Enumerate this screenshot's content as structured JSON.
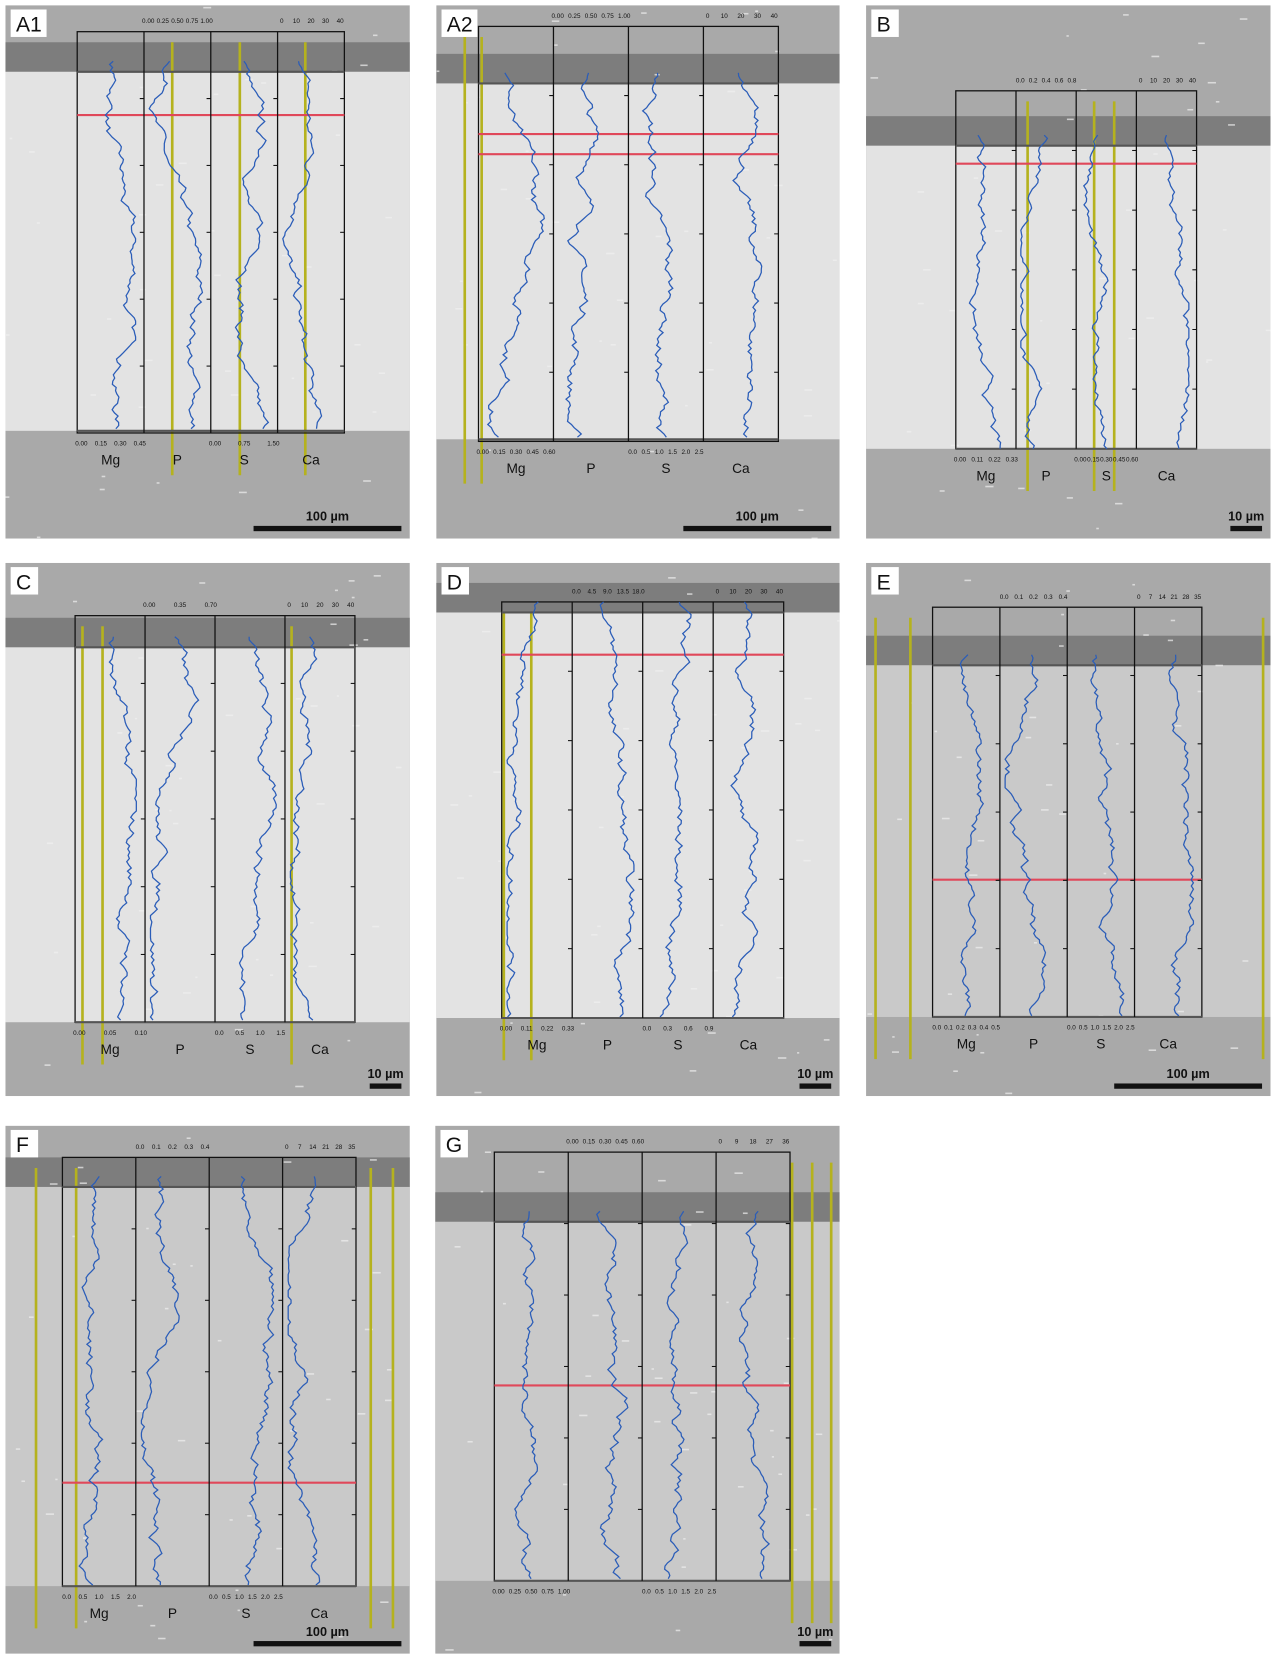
{
  "panels": [
    {
      "label": "A1",
      "scale_bar": "100 µm",
      "tracks": [
        {
          "element": "Mg",
          "ticks": [
            "0.00",
            "0.15",
            "0.30",
            "0.45"
          ]
        },
        {
          "element": "P",
          "ticks": [
            "0.00",
            "0.25",
            "0.50",
            "0.75",
            "1.00"
          ]
        },
        {
          "element": "S",
          "ticks": [
            "0.00",
            "0.75",
            "1.50"
          ]
        },
        {
          "element": "Ca",
          "ticks": [
            "0",
            "10",
            "20",
            "30",
            "40"
          ]
        }
      ]
    },
    {
      "label": "A2",
      "scale_bar": "100 µm",
      "tracks": [
        {
          "element": "Mg",
          "ticks": [
            "0.00",
            "0.15",
            "0.30",
            "0.45",
            "0.60"
          ]
        },
        {
          "element": "P",
          "ticks": [
            "0.00",
            "0.25",
            "0.50",
            "0.75",
            "1.00"
          ]
        },
        {
          "element": "S",
          "ticks": [
            "0.0",
            "0.5",
            "1.0",
            "1.5",
            "2.0",
            "2.5"
          ]
        },
        {
          "element": "Ca",
          "ticks": [
            "0",
            "10",
            "20",
            "30",
            "40"
          ]
        }
      ]
    },
    {
      "label": "B",
      "scale_bar": "10 µm",
      "tracks": [
        {
          "element": "Mg",
          "ticks": [
            "0.00",
            "0.11",
            "0.22",
            "0.33"
          ]
        },
        {
          "element": "P",
          "ticks": [
            "0.0",
            "0.2",
            "0.4",
            "0.6",
            "0.8"
          ]
        },
        {
          "element": "S",
          "ticks": [
            "0.00",
            "0.15",
            "0.30",
            "0.45",
            "0.60"
          ]
        },
        {
          "element": "Ca",
          "ticks": [
            "0",
            "10",
            "20",
            "30",
            "40"
          ]
        }
      ]
    },
    {
      "label": "C",
      "scale_bar": "10 µm",
      "tracks": [
        {
          "element": "Mg",
          "ticks": [
            "0.00",
            "0.05",
            "0.10"
          ]
        },
        {
          "element": "P",
          "ticks": [
            "0.00",
            "0.35",
            "0.70"
          ]
        },
        {
          "element": "S",
          "ticks": [
            "0.0",
            "0.5",
            "1.0",
            "1.5"
          ]
        },
        {
          "element": "Ca",
          "ticks": [
            "0",
            "10",
            "20",
            "30",
            "40"
          ]
        }
      ]
    },
    {
      "label": "D",
      "scale_bar": "10 µm",
      "tracks": [
        {
          "element": "Mg",
          "ticks": [
            "0.00",
            "0.11",
            "0.22",
            "0.33"
          ]
        },
        {
          "element": "P",
          "ticks": [
            "0.0",
            "4.5",
            "9.0",
            "13.5",
            "18.0"
          ]
        },
        {
          "element": "S",
          "ticks": [
            "0.0",
            "0.3",
            "0.6",
            "0.9"
          ]
        },
        {
          "element": "Ca",
          "ticks": [
            "0",
            "10",
            "20",
            "30",
            "40"
          ]
        }
      ]
    },
    {
      "label": "E",
      "scale_bar": "100 µm",
      "tracks": [
        {
          "element": "Mg",
          "ticks": [
            "0.0",
            "0.1",
            "0.2",
            "0.3",
            "0.4",
            "0.5"
          ]
        },
        {
          "element": "P",
          "ticks": [
            "0.0",
            "0.1",
            "0.2",
            "0.3",
            "0.4"
          ]
        },
        {
          "element": "S",
          "ticks": [
            "0.0",
            "0.5",
            "1.0",
            "1.5",
            "2.0",
            "2.5"
          ]
        },
        {
          "element": "Ca",
          "ticks": [
            "0",
            "7",
            "14",
            "21",
            "28",
            "35"
          ]
        }
      ]
    },
    {
      "label": "F",
      "scale_bar": "100 µm",
      "tracks": [
        {
          "element": "Mg",
          "ticks": [
            "0.0",
            "0.5",
            "1.0",
            "1.5",
            "2.0"
          ]
        },
        {
          "element": "P",
          "ticks": [
            "0.0",
            "0.1",
            "0.2",
            "0.3",
            "0.4"
          ]
        },
        {
          "element": "S",
          "ticks": [
            "0.0",
            "0.5",
            "1.0",
            "1.5",
            "2.0",
            "2.5"
          ]
        },
        {
          "element": "Ca",
          "ticks": [
            "0",
            "7",
            "14",
            "21",
            "28",
            "35"
          ]
        }
      ]
    },
    {
      "label": "G",
      "scale_bar": "10 µm",
      "tracks": [
        {
          "ticks": [
            "0.00",
            "0.25",
            "0.50",
            "0.75",
            "1.00"
          ]
        },
        {
          "ticks": [
            "0.00",
            "0.15",
            "0.30",
            "0.45",
            "0.60"
          ]
        },
        {
          "ticks": [
            "0.0",
            "0.5",
            "1.0",
            "1.5",
            "2.0",
            "2.5"
          ]
        },
        {
          "ticks": [
            "0",
            "9",
            "18",
            "27",
            "36"
          ]
        }
      ]
    }
  ]
}
